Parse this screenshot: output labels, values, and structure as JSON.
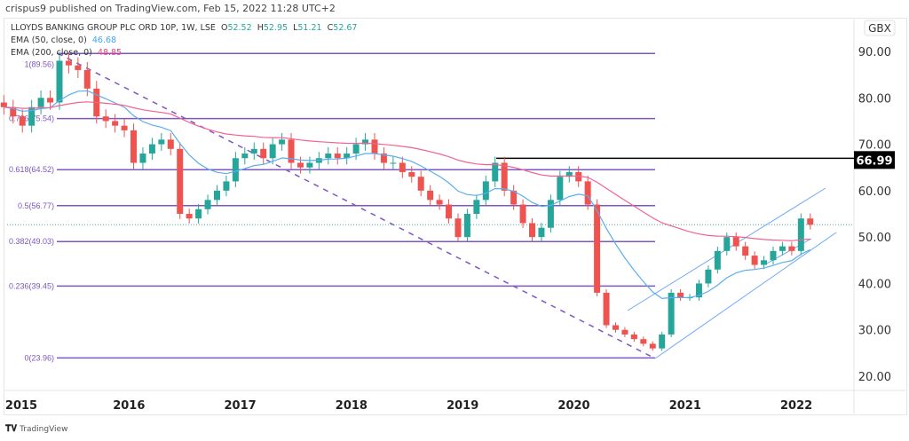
{
  "header": {
    "published": "crispus9 published on TradingView.com, Feb 15, 2022 11:28 UTC+2"
  },
  "legend": {
    "symbol": "LLOYDS BANKING GROUP PLC ORD 10P, 1W, LSE",
    "o_label": "O",
    "open": "52.52",
    "h_label": "H",
    "high": "52.95",
    "l_label": "L",
    "low": "51.21",
    "c_label": "C",
    "close": "52.67",
    "ema50_label": "EMA (50, close, 0)",
    "ema50_value": "46.68",
    "ema200_label": "EMA (200, close, 0)",
    "ema200_value": "48.85"
  },
  "footer": {
    "brand": "TradingView",
    "logo": "TV"
  },
  "chart_data": {
    "type": "candlestick",
    "currency": "GBX",
    "ylim": [
      17,
      95
    ],
    "y_ticks": [
      "90.00",
      "80.00",
      "70.00",
      "60.00",
      "50.00",
      "40.00",
      "30.00",
      "20.00"
    ],
    "y_tick_values": [
      90,
      80,
      70,
      60,
      50,
      40,
      30,
      20
    ],
    "x_ticks": [
      "2015",
      "2016",
      "2017",
      "2018",
      "2019",
      "2020",
      "2021",
      "2022"
    ],
    "grid": false,
    "colors": {
      "up": "#26a69a",
      "down": "#ef5350",
      "fib": "#7e57c2",
      "ema50": "#5aaef0",
      "ema200": "#f06292",
      "channel": "#6fa8f5"
    },
    "series_start": "2014-11",
    "interval": "monthly (approx. of weekly candles)",
    "close": [
      78,
      76,
      74,
      78,
      80,
      79,
      88,
      87,
      86,
      82,
      76,
      75,
      74,
      73,
      66,
      68,
      70,
      71,
      69,
      55,
      54,
      56,
      58,
      60,
      62,
      67,
      68,
      69,
      67,
      70,
      71,
      66,
      65,
      66,
      67,
      68,
      67,
      68,
      70,
      71,
      68,
      66,
      66,
      64,
      63,
      60,
      58,
      57,
      54,
      50,
      55,
      58,
      62,
      66,
      60,
      57,
      53,
      50,
      52,
      58,
      63,
      64,
      62,
      57,
      38,
      31,
      30,
      29,
      28,
      27,
      26,
      29,
      38,
      37,
      37,
      40,
      43,
      47,
      50,
      48,
      46,
      44,
      45,
      47,
      48,
      47,
      54,
      52.67
    ],
    "fibonacci": [
      {
        "label": "1(89.56)",
        "value": 89.56
      },
      {
        "label": "0.786(75.54)",
        "value": 75.54
      },
      {
        "label": "0.618(64.52)",
        "value": 64.52
      },
      {
        "label": "0.5(56.77)",
        "value": 56.77
      },
      {
        "label": "0.382(49.03)",
        "value": 49.03
      },
      {
        "label": "0.236(39.45)",
        "value": 39.45
      },
      {
        "label": "0(23.96)",
        "value": 23.96
      }
    ],
    "resistance": {
      "value": 66.99,
      "label": "66.99"
    },
    "last_price": 52.67
  }
}
